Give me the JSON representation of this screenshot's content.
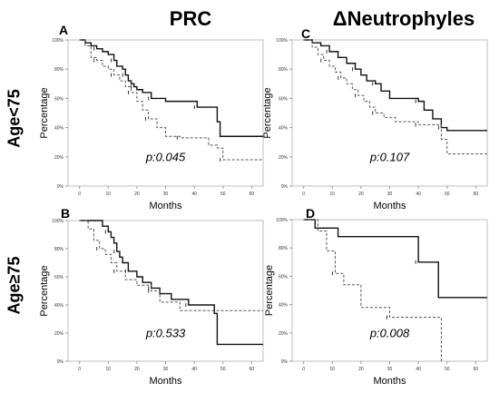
{
  "columns": [
    "PRC",
    "ΔNeutrophyles"
  ],
  "rows": [
    "Age<75",
    "Age≥75"
  ],
  "chart_data": [
    {
      "type": "line",
      "panel": "A",
      "xlabel": "Months",
      "ylabel": "Percentage",
      "annotation": "p:0.045",
      "xlim": [
        -4,
        64
      ],
      "ylim": [
        0,
        100
      ],
      "xticks": [
        "0",
        "10",
        "20",
        "30",
        "40",
        "50",
        "60"
      ],
      "yticks": [
        "0%",
        "20%",
        "40%",
        "60%",
        "80%",
        "100%"
      ],
      "series": [
        {
          "style": "solid",
          "x": [
            0,
            2,
            4,
            6,
            8,
            10,
            12,
            13,
            15,
            16,
            17,
            18,
            19,
            20,
            22,
            25,
            30,
            38,
            41,
            48,
            49,
            64
          ],
          "y": [
            100,
            98,
            96,
            94,
            92,
            90,
            86,
            82,
            80,
            76,
            72,
            70,
            68,
            66,
            64,
            60,
            58,
            58,
            54,
            44,
            34,
            34
          ]
        },
        {
          "style": "dashed",
          "x": [
            0,
            2,
            4,
            6,
            8,
            10,
            12,
            14,
            16,
            18,
            20,
            22,
            24,
            27,
            30,
            35,
            45,
            48,
            50,
            64
          ],
          "y": [
            100,
            96,
            88,
            86,
            82,
            80,
            76,
            72,
            68,
            64,
            58,
            52,
            46,
            40,
            34,
            33,
            28,
            26,
            18,
            18
          ]
        }
      ]
    },
    {
      "type": "line",
      "panel": "C",
      "xlabel": "Months",
      "ylabel": "Percentage",
      "annotation": "p:0.107",
      "xlim": [
        -4,
        64
      ],
      "ylim": [
        0,
        100
      ],
      "xticks": [
        "0",
        "10",
        "20",
        "30",
        "40",
        "50",
        "60"
      ],
      "yticks": [
        "0%",
        "20%",
        "40%",
        "60%",
        "80%",
        "100%"
      ],
      "series": [
        {
          "style": "solid",
          "x": [
            0,
            3,
            6,
            9,
            12,
            15,
            18,
            20,
            22,
            25,
            27,
            30,
            40,
            42,
            45,
            48,
            50,
            64
          ],
          "y": [
            100,
            98,
            96,
            92,
            88,
            84,
            80,
            76,
            72,
            70,
            65,
            60,
            58,
            52,
            46,
            40,
            38,
            38
          ]
        },
        {
          "style": "dashed",
          "x": [
            0,
            3,
            5,
            7,
            9,
            11,
            13,
            15,
            17,
            19,
            21,
            23,
            25,
            28,
            32,
            40,
            48,
            50,
            64
          ],
          "y": [
            100,
            95,
            90,
            86,
            82,
            78,
            74,
            70,
            66,
            62,
            58,
            54,
            50,
            47,
            44,
            42,
            32,
            22,
            22
          ]
        }
      ]
    },
    {
      "type": "line",
      "panel": "B",
      "xlabel": "Months",
      "ylabel": "Percentage",
      "annotation": "p:0.533",
      "xlim": [
        -4,
        64
      ],
      "ylim": [
        0,
        100
      ],
      "xticks": [
        "0",
        "10",
        "20",
        "30",
        "40",
        "50",
        "60"
      ],
      "yticks": [
        "0%",
        "20%",
        "40%",
        "60%",
        "80%",
        "100%"
      ],
      "series": [
        {
          "style": "solid",
          "x": [
            0,
            6,
            8,
            10,
            11,
            12,
            13,
            14,
            15,
            17,
            20,
            22,
            25,
            28,
            32,
            38,
            47,
            48,
            64
          ],
          "y": [
            100,
            100,
            96,
            92,
            88,
            84,
            78,
            74,
            70,
            64,
            60,
            56,
            52,
            48,
            44,
            40,
            34,
            12,
            12
          ]
        },
        {
          "style": "dashed",
          "x": [
            0,
            3,
            5,
            7,
            9,
            11,
            13,
            16,
            20,
            25,
            28,
            35,
            64
          ],
          "y": [
            100,
            94,
            86,
            80,
            76,
            70,
            64,
            58,
            54,
            50,
            42,
            36,
            36
          ]
        }
      ]
    },
    {
      "type": "line",
      "panel": "D",
      "xlabel": "Months",
      "ylabel": "Percentage",
      "annotation": "p:0.008",
      "xlim": [
        -4,
        64
      ],
      "ylim": [
        0,
        100
      ],
      "xticks": [
        "0",
        "10",
        "20",
        "30",
        "40",
        "50",
        "60"
      ],
      "yticks": [
        "0%",
        "20%",
        "40%",
        "60%",
        "80%",
        "100%"
      ],
      "series": [
        {
          "style": "solid",
          "x": [
            0,
            4,
            12,
            40,
            47,
            64
          ],
          "y": [
            100,
            94,
            88,
            70,
            45,
            45
          ]
        },
        {
          "style": "dashed",
          "x": [
            0,
            5,
            8,
            11,
            14,
            20,
            30,
            48
          ],
          "y": [
            100,
            92,
            78,
            62,
            54,
            38,
            31,
            0
          ]
        }
      ]
    }
  ]
}
